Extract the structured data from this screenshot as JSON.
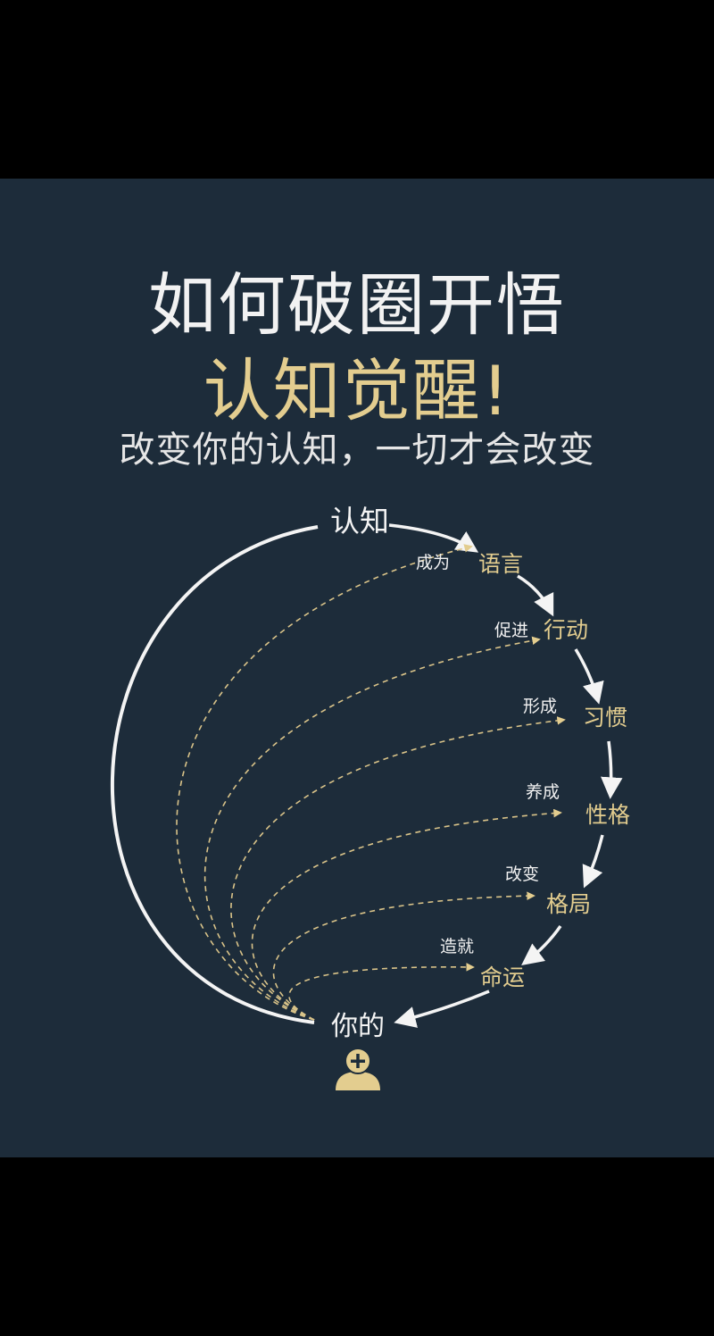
{
  "header": {
    "title": "如何破圈开悟",
    "accent": "认知觉醒!",
    "subtitle": "改变你的认知，一切才会改变"
  },
  "diagram": {
    "start_node": "认知",
    "end_node": "你的",
    "nodes": [
      {
        "label": "语言",
        "verb": "成为"
      },
      {
        "label": "行动",
        "verb": "促进"
      },
      {
        "label": "习惯",
        "verb": "形成"
      },
      {
        "label": "性格",
        "verb": "养成"
      },
      {
        "label": "格局",
        "verb": "改变"
      },
      {
        "label": "命运",
        "verb": "造就"
      }
    ],
    "person_icon": "person-plus-icon"
  },
  "colors": {
    "background": "#1d2c3a",
    "gold": "#e3cd8f",
    "white": "#f4f4f4",
    "letterbox": "#000000"
  }
}
